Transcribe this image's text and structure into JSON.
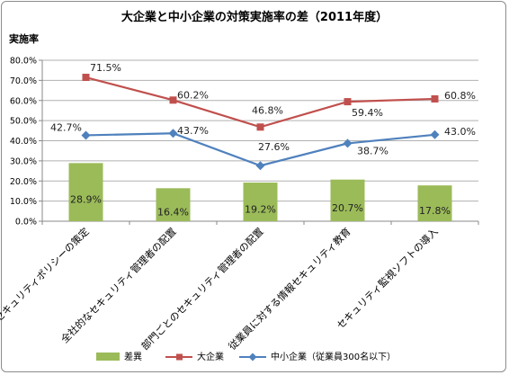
{
  "chart_data": {
    "type": "bar+line",
    "title": "大企業と中小企業の対策実施率の差（2011年度）",
    "ylabel": "実施率",
    "xlabel": "",
    "ylim": [
      0,
      80
    ],
    "yticks": [
      "0.0%",
      "10.0%",
      "20.0%",
      "30.0%",
      "40.0%",
      "50.0%",
      "60.0%",
      "70.0%",
      "80.0%"
    ],
    "grid": true,
    "legend_position": "bottom",
    "categories": [
      "セキュリティポリシーの策定",
      "全社的なセキュリティ管理者の配置",
      "部門ごとのセキュリティ管理者の配置",
      "従業員に対する情報セキュリティ教育",
      "セキュリティ監視ソフトの導入"
    ],
    "series": [
      {
        "name": "差異",
        "type": "bar",
        "color": "#9bbb59",
        "values": [
          28.9,
          16.4,
          19.2,
          20.7,
          17.8
        ],
        "labels": [
          "28.9%",
          "16.4%",
          "19.2%",
          "20.7%",
          "17.8%"
        ]
      },
      {
        "name": "大企業",
        "type": "line",
        "color": "#c0504d",
        "marker": "square",
        "values": [
          71.5,
          60.2,
          46.8,
          59.4,
          60.8
        ],
        "labels": [
          "71.5%",
          "60.2%",
          "46.8%",
          "59.4%",
          "60.8%"
        ]
      },
      {
        "name": "中小企業（従業員300名以下）",
        "type": "line",
        "color": "#4f81bd",
        "marker": "diamond",
        "values": [
          42.7,
          43.7,
          27.6,
          38.7,
          43.0
        ],
        "labels": [
          "42.7%",
          "43.7%",
          "27.6%",
          "38.7%",
          "43.0%"
        ]
      }
    ]
  }
}
